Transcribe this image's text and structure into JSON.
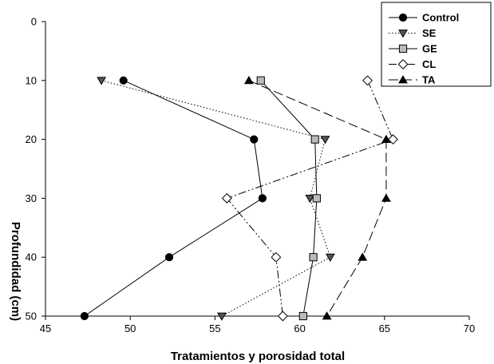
{
  "chart_data": {
    "type": "line",
    "xlabel": "Tratamientos y porosidad total",
    "ylabel": "Profundidad (cm)",
    "xlim": [
      45,
      70
    ],
    "ylim": [
      0,
      50
    ],
    "y_inverted": true,
    "x_ticks": [
      45,
      50,
      55,
      60,
      65,
      70
    ],
    "y_ticks": [
      0,
      10,
      20,
      30,
      40,
      50
    ],
    "grid": false,
    "legend_position": "top-right",
    "series": [
      {
        "name": "Control",
        "marker": "circle",
        "marker_fill": "#000000",
        "line_style": "solid",
        "x": [
          49.6,
          57.3,
          57.8,
          52.3,
          47.3
        ],
        "y": [
          10,
          20,
          30,
          40,
          50
        ]
      },
      {
        "name": "SE",
        "marker": "triangle-down",
        "marker_fill": "#555555",
        "line_style": "dotted",
        "x": [
          48.3,
          61.5,
          60.6,
          61.8,
          55.4
        ],
        "y": [
          10,
          20,
          30,
          40,
          50
        ]
      },
      {
        "name": "GE",
        "marker": "square",
        "marker_fill": "#bbbbbb",
        "line_style": "solid",
        "x": [
          57.7,
          60.9,
          61.0,
          60.8,
          60.2
        ],
        "y": [
          10,
          20,
          30,
          40,
          50
        ]
      },
      {
        "name": "CL",
        "marker": "diamond",
        "marker_fill": "#ffffff",
        "line_style": "dash-dot-dot",
        "x": [
          64.0,
          65.5,
          55.7,
          58.6,
          59.0
        ],
        "y": [
          10,
          20,
          30,
          40,
          50
        ]
      },
      {
        "name": "TA",
        "marker": "triangle-up",
        "marker_fill": "#000000",
        "line_style": "long-dash",
        "x": [
          57.0,
          65.1,
          65.1,
          63.7,
          61.6
        ],
        "y": [
          10,
          20,
          30,
          40,
          50
        ]
      }
    ]
  }
}
